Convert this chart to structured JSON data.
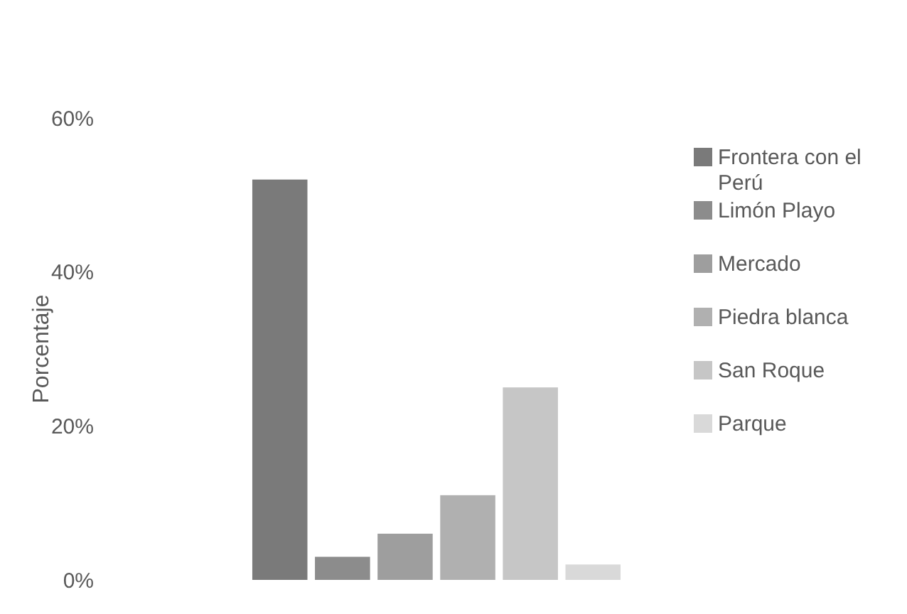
{
  "chart_data": {
    "type": "bar",
    "ylabel": "Porcentaje",
    "categories": [
      null
    ],
    "series": [
      {
        "name": "Frontera con el Perú",
        "color": "#7a7a7a",
        "values": [
          52
        ]
      },
      {
        "name": "Limón Playo",
        "color": "#8c8c8c",
        "values": [
          3
        ]
      },
      {
        "name": "Mercado",
        "color": "#9e9e9e",
        "values": [
          6
        ]
      },
      {
        "name": "Piedra blanca",
        "color": "#b0b0b0",
        "values": [
          11
        ]
      },
      {
        "name": "San Roque",
        "color": "#c6c6c6",
        "values": [
          25
        ]
      },
      {
        "name": "Parque",
        "color": "#d9d9d9",
        "values": [
          2
        ]
      }
    ],
    "ylim": [
      0,
      60
    ],
    "yticks": [
      {
        "value": 0,
        "label": "0%"
      },
      {
        "value": 20,
        "label": "20%"
      },
      {
        "value": 40,
        "label": "40%"
      },
      {
        "value": 60,
        "label": "60%"
      }
    ],
    "grid": false,
    "legend": "right"
  }
}
